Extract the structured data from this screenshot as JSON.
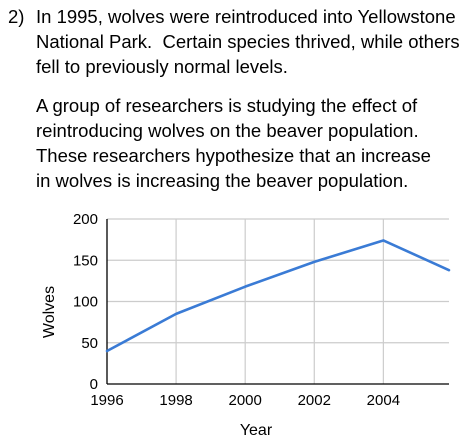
{
  "question": {
    "number": "2)",
    "intro_lines": [
      "In 1995, wolves were reintroduced into Yellowstone",
      "National Park.  Certain species thrived, while others",
      "fell to previously normal levels."
    ],
    "paragraph_lines": [
      "A group of researchers is studying the effect of",
      "reintroducing wolves on the beaver population.",
      "These researchers hypothesize that an increase",
      "in wolves is increasing the beaver population."
    ]
  },
  "chart_data": {
    "type": "line",
    "title": "",
    "xlabel": "Year",
    "ylabel": "Wolves",
    "x_ticks": [
      "1996",
      "1998",
      "2000",
      "2002",
      "2004"
    ],
    "y_ticks": [
      "0",
      "50",
      "100",
      "150",
      "200"
    ],
    "xlim": [
      1996,
      2005.9
    ],
    "ylim": [
      0,
      200
    ],
    "grid": true,
    "line_color": "#3a7bd5",
    "grid_color": "#cccccc",
    "series": [
      {
        "x": [
          1996,
          1998,
          2000,
          2002,
          2004,
          2005.9
        ],
        "y": [
          40,
          85,
          118,
          148,
          174,
          138
        ]
      }
    ]
  }
}
